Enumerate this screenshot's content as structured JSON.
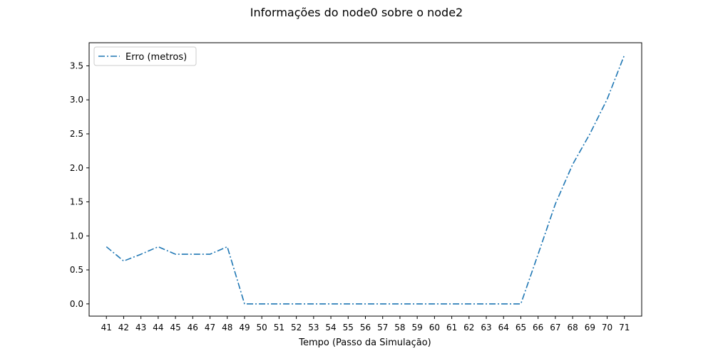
{
  "chart_data": {
    "type": "line",
    "title": "Informações do node0 sobre o node2",
    "xlabel": "Tempo (Passo da Simulação)",
    "ylabel": "",
    "x": [
      41,
      42,
      43,
      44,
      45,
      46,
      47,
      48,
      49,
      50,
      51,
      52,
      53,
      54,
      55,
      56,
      57,
      58,
      59,
      60,
      61,
      62,
      63,
      64,
      65,
      66,
      67,
      68,
      69,
      70,
      71
    ],
    "series": [
      {
        "name": "Erro (metros)",
        "color": "#1f77b4",
        "linestyle": "dashdot",
        "values": [
          0.84,
          0.63,
          0.73,
          0.84,
          0.73,
          0.73,
          0.73,
          0.84,
          0.0,
          0.0,
          0.0,
          0.0,
          0.0,
          0.0,
          0.0,
          0.0,
          0.0,
          0.0,
          0.0,
          0.0,
          0.0,
          0.0,
          0.0,
          0.0,
          0.0,
          0.73,
          1.47,
          2.05,
          2.5,
          3.01,
          3.66
        ]
      }
    ],
    "xlim": [
      40.0,
      72.0
    ],
    "ylim": [
      -0.18,
      3.84
    ],
    "yticks": [
      0.0,
      0.5,
      1.0,
      1.5,
      2.0,
      2.5,
      3.0,
      3.5
    ],
    "ytick_labels": [
      "0.0",
      "0.5",
      "1.0",
      "1.5",
      "2.0",
      "2.5",
      "3.0",
      "3.5"
    ],
    "grid": false,
    "legend_position": "top-left"
  }
}
